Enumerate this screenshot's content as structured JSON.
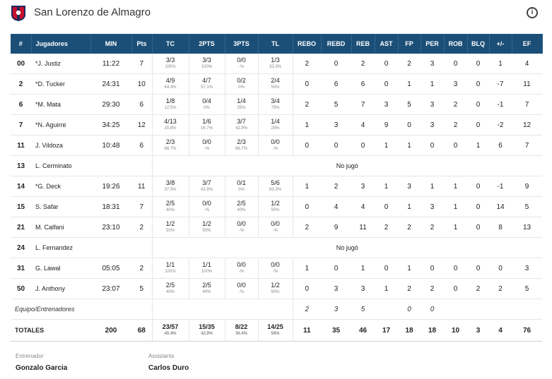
{
  "team": {
    "name": "San Lorenzo de Almagro",
    "info_label": "i"
  },
  "columns": [
    "#",
    "Jugadores",
    "MIN",
    "Pts",
    "TC",
    "2PTS",
    "3PTS",
    "TL",
    "REBO",
    "REBD",
    "REB",
    "AST",
    "FP",
    "PER",
    "ROB",
    "BLQ",
    "+/-",
    "EF"
  ],
  "players": [
    {
      "num": "00",
      "name": "*J. Justiz",
      "min": "11:22",
      "pts": "7",
      "tc": [
        "3/3",
        "100%"
      ],
      "p2": [
        "3/3",
        "100%"
      ],
      "p3": [
        "0/0",
        "-%"
      ],
      "tl": [
        "1/3",
        "33.3%"
      ],
      "rebo": "2",
      "rebd": "0",
      "reb": "2",
      "ast": "0",
      "fp": "2",
      "per": "3",
      "rob": "0",
      "blq": "0",
      "pm": "1",
      "ef": "4"
    },
    {
      "num": "2",
      "name": "*D. Tucker",
      "min": "24:31",
      "pts": "10",
      "tc": [
        "4/9",
        "44.4%"
      ],
      "p2": [
        "4/7",
        "57.1%"
      ],
      "p3": [
        "0/2",
        "0%"
      ],
      "tl": [
        "2/4",
        "50%"
      ],
      "rebo": "0",
      "rebd": "6",
      "reb": "6",
      "ast": "0",
      "fp": "1",
      "per": "1",
      "rob": "3",
      "blq": "0",
      "pm": "-7",
      "ef": "11"
    },
    {
      "num": "6",
      "name": "*M. Mata",
      "min": "29:30",
      "pts": "6",
      "tc": [
        "1/8",
        "12.5%"
      ],
      "p2": [
        "0/4",
        "0%"
      ],
      "p3": [
        "1/4",
        "25%"
      ],
      "tl": [
        "3/4",
        "75%"
      ],
      "rebo": "2",
      "rebd": "5",
      "reb": "7",
      "ast": "3",
      "fp": "5",
      "per": "3",
      "rob": "2",
      "blq": "0",
      "pm": "-1",
      "ef": "7"
    },
    {
      "num": "7",
      "name": "*N. Aguirre",
      "min": "34:25",
      "pts": "12",
      "tc": [
        "4/13",
        "30.8%"
      ],
      "p2": [
        "1/6",
        "16.7%"
      ],
      "p3": [
        "3/7",
        "42.9%"
      ],
      "tl": [
        "1/4",
        "25%"
      ],
      "rebo": "1",
      "rebd": "3",
      "reb": "4",
      "ast": "9",
      "fp": "0",
      "per": "3",
      "rob": "2",
      "blq": "0",
      "pm": "-2",
      "ef": "12"
    },
    {
      "num": "11",
      "name": "J. Vildoza",
      "min": "10:48",
      "pts": "6",
      "tc": [
        "2/3",
        "66.7%"
      ],
      "p2": [
        "0/0",
        "-%"
      ],
      "p3": [
        "2/3",
        "66.7%"
      ],
      "tl": [
        "0/0",
        "-%"
      ],
      "rebo": "0",
      "rebd": "0",
      "reb": "0",
      "ast": "1",
      "fp": "1",
      "per": "0",
      "rob": "0",
      "blq": "1",
      "pm": "6",
      "ef": "7"
    },
    {
      "num": "13",
      "name": "L. Cerminato",
      "dnp": "No jugó"
    },
    {
      "num": "14",
      "name": "*G. Deck",
      "min": "19:26",
      "pts": "11",
      "tc": [
        "3/8",
        "37.5%"
      ],
      "p2": [
        "3/7",
        "42.9%"
      ],
      "p3": [
        "0/1",
        "0%"
      ],
      "tl": [
        "5/6",
        "83.3%"
      ],
      "rebo": "1",
      "rebd": "2",
      "reb": "3",
      "ast": "1",
      "fp": "3",
      "per": "1",
      "rob": "1",
      "blq": "0",
      "pm": "-1",
      "ef": "9"
    },
    {
      "num": "15",
      "name": "S. Safar",
      "min": "18:31",
      "pts": "7",
      "tc": [
        "2/5",
        "40%"
      ],
      "p2": [
        "0/0",
        "-%"
      ],
      "p3": [
        "2/5",
        "40%"
      ],
      "tl": [
        "1/2",
        "50%"
      ],
      "rebo": "0",
      "rebd": "4",
      "reb": "4",
      "ast": "0",
      "fp": "1",
      "per": "3",
      "rob": "1",
      "blq": "0",
      "pm": "14",
      "ef": "5"
    },
    {
      "num": "21",
      "name": "M. Calfani",
      "min": "23:10",
      "pts": "2",
      "tc": [
        "1/2",
        "50%"
      ],
      "p2": [
        "1/2",
        "50%"
      ],
      "p3": [
        "0/0",
        "-%"
      ],
      "tl": [
        "0/0",
        "-%"
      ],
      "rebo": "2",
      "rebd": "9",
      "reb": "11",
      "ast": "2",
      "fp": "2",
      "per": "2",
      "rob": "1",
      "blq": "0",
      "pm": "8",
      "ef": "13"
    },
    {
      "num": "24",
      "name": "L. Fernandez",
      "dnp": "No jugó"
    },
    {
      "num": "31",
      "name": "G. Lawal",
      "min": "05:05",
      "pts": "2",
      "tc": [
        "1/1",
        "100%"
      ],
      "p2": [
        "1/1",
        "100%"
      ],
      "p3": [
        "0/0",
        "-%"
      ],
      "tl": [
        "0/0",
        "-%"
      ],
      "rebo": "1",
      "rebd": "0",
      "reb": "1",
      "ast": "0",
      "fp": "1",
      "per": "0",
      "rob": "0",
      "blq": "0",
      "pm": "0",
      "ef": "3"
    },
    {
      "num": "50",
      "name": "J. Anthony",
      "min": "23:07",
      "pts": "5",
      "tc": [
        "2/5",
        "40%"
      ],
      "p2": [
        "2/5",
        "40%"
      ],
      "p3": [
        "0/0",
        "-%"
      ],
      "tl": [
        "1/2",
        "50%"
      ],
      "rebo": "0",
      "rebd": "3",
      "reb": "3",
      "ast": "1",
      "fp": "2",
      "per": "2",
      "rob": "0",
      "blq": "2",
      "pm": "2",
      "ef": "5"
    }
  ],
  "team_row": {
    "label": "Equipo/Entrenadores",
    "rebo": "2",
    "rebd": "3",
    "reb": "5",
    "ast": "",
    "fp": "0",
    "per": "0",
    "rob": "",
    "blq": "",
    "pm": "",
    "ef": ""
  },
  "totals": {
    "label": "TOTALES",
    "min": "200",
    "pts": "68",
    "tc": [
      "23/57",
      "40.4%"
    ],
    "p2": [
      "15/35",
      "42.9%"
    ],
    "p3": [
      "8/22",
      "36.4%"
    ],
    "tl": [
      "14/25",
      "56%"
    ],
    "rebo": "11",
    "rebd": "35",
    "reb": "46",
    "ast": "17",
    "fp": "18",
    "per": "18",
    "rob": "10",
    "blq": "3",
    "pm": "4",
    "ef": "76"
  },
  "staff": {
    "coach_label": "Entrenador",
    "coach_name": "Gonzalo Garcia",
    "assistants_label": "Assistants",
    "assistants_name": "Carlos Duro"
  },
  "colors": {
    "header_bg": "#1c4f77",
    "crest_red": "#c8102e",
    "crest_navy": "#1b2a5c"
  }
}
